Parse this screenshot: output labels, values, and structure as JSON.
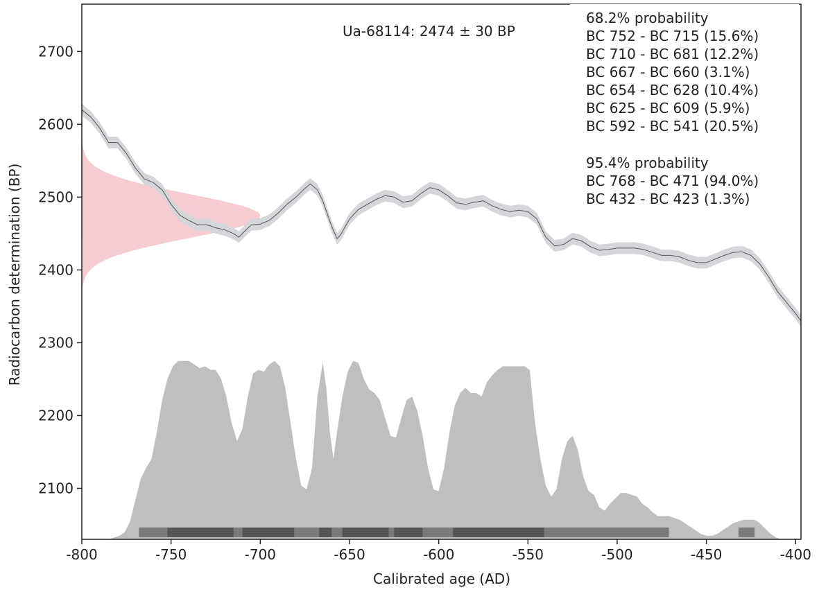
{
  "chart_data": {
    "type": "area",
    "title": "",
    "xlabel": "Calibrated age (AD)",
    "ylabel": "Radiocarbon determination (BP)",
    "xlim": [
      -800,
      -397
    ],
    "ylim": [
      2030,
      2765
    ],
    "x_ticks": [
      -800,
      -750,
      -700,
      -650,
      -600,
      -550,
      -500,
      -450,
      -400
    ],
    "x_tick_labels": [
      "-800",
      "-750",
      "-700",
      "-650",
      "-600",
      "-550",
      "-500",
      "-450",
      "-400"
    ],
    "y_ticks": [
      2100,
      2200,
      2300,
      2400,
      2500,
      2600,
      2700
    ],
    "y_tick_labels": [
      "2100",
      "2200",
      "2300",
      "2400",
      "2500",
      "2600",
      "2700"
    ],
    "grid": false,
    "sample_label": "Ua-68114: 2474 ± 30 BP",
    "ranges_68": {
      "heading": "68.2% probability",
      "lines": [
        "BC 752 - BC 715 (15.6%)",
        "BC 710 - BC 681 (12.2%)",
        "BC 667 - BC 660 (3.1%)",
        "BC 654 - BC 628 (10.4%)",
        "BC 625 - BC 609 (5.9%)",
        "BC 592 - BC 541 (20.5%)"
      ]
    },
    "ranges_95": {
      "heading": "95.4% probability",
      "lines": [
        "BC 768 - BC 471 (94.0%)",
        "BC 432 - BC 423 (1.3%)"
      ]
    },
    "calibration_curve": {
      "x": [
        -800,
        -795,
        -790,
        -785,
        -780,
        -775,
        -770,
        -765,
        -760,
        -755,
        -750,
        -745,
        -740,
        -735,
        -730,
        -725,
        -720,
        -715,
        -712,
        -708,
        -705,
        -700,
        -695,
        -690,
        -685,
        -680,
        -675,
        -672,
        -668,
        -665,
        -660,
        -657,
        -655,
        -650,
        -645,
        -640,
        -635,
        -630,
        -625,
        -620,
        -615,
        -610,
        -605,
        -600,
        -595,
        -590,
        -585,
        -580,
        -575,
        -570,
        -565,
        -560,
        -555,
        -550,
        -545,
        -540,
        -535,
        -530,
        -525,
        -520,
        -515,
        -510,
        -505,
        -500,
        -495,
        -490,
        -485,
        -480,
        -475,
        -470,
        -465,
        -460,
        -455,
        -450,
        -445,
        -440,
        -435,
        -430,
        -425,
        -420,
        -415,
        -410,
        -405,
        -400,
        -397
      ],
      "bp": [
        2620,
        2610,
        2595,
        2575,
        2575,
        2560,
        2540,
        2525,
        2520,
        2510,
        2490,
        2475,
        2468,
        2462,
        2462,
        2458,
        2455,
        2450,
        2445,
        2455,
        2462,
        2463,
        2468,
        2478,
        2490,
        2500,
        2512,
        2518,
        2510,
        2495,
        2460,
        2443,
        2448,
        2470,
        2483,
        2490,
        2497,
        2502,
        2500,
        2493,
        2495,
        2505,
        2513,
        2510,
        2502,
        2492,
        2490,
        2493,
        2495,
        2488,
        2483,
        2480,
        2482,
        2480,
        2470,
        2445,
        2433,
        2435,
        2443,
        2440,
        2432,
        2427,
        2428,
        2430,
        2430,
        2430,
        2428,
        2424,
        2420,
        2420,
        2418,
        2413,
        2410,
        2410,
        2415,
        2420,
        2424,
        2425,
        2420,
        2408,
        2390,
        2370,
        2355,
        2340,
        2330
      ],
      "sigma": 8
    },
    "measurement": {
      "mean_bp": 2474,
      "error_bp": 30,
      "x_start": -800,
      "peak_extent_years": 100,
      "band_sigmas": 3.4
    },
    "posterior": {
      "x": [
        -788,
        -785,
        -782,
        -779,
        -776,
        -773,
        -770,
        -767,
        -764,
        -761,
        -758,
        -755,
        -752,
        -749,
        -746,
        -743,
        -740,
        -737,
        -734,
        -731,
        -728,
        -725,
        -722,
        -719,
        -716,
        -713,
        -710,
        -707,
        -704,
        -701,
        -698,
        -695,
        -692,
        -689,
        -686,
        -683,
        -680,
        -677,
        -674,
        -671,
        -668,
        -665,
        -663,
        -661,
        -659,
        -657,
        -654,
        -651,
        -648,
        -645,
        -642,
        -639,
        -636,
        -633,
        -630,
        -627,
        -624,
        -621,
        -618,
        -615,
        -612,
        -609,
        -606,
        -603,
        -600,
        -597,
        -594,
        -591,
        -588,
        -585,
        -582,
        -579,
        -576,
        -573,
        -570,
        -567,
        -564,
        -561,
        -558,
        -555,
        -552,
        -549,
        -546,
        -543,
        -540,
        -537,
        -534,
        -531,
        -528,
        -525,
        -522,
        -519,
        -516,
        -513,
        -510,
        -507,
        -504,
        -501,
        -498,
        -495,
        -492,
        -489,
        -486,
        -483,
        -480,
        -477,
        -474,
        -471,
        -468,
        -465,
        -462,
        -459,
        -456,
        -453,
        -450,
        -447,
        -444,
        -441,
        -438,
        -435,
        -432,
        -429,
        -426,
        -423,
        -420,
        -417,
        -414,
        -411,
        -408,
        -405
      ],
      "density": [
        0,
        0,
        0.01,
        0.02,
        0.04,
        0.1,
        0.22,
        0.34,
        0.4,
        0.45,
        0.6,
        0.78,
        0.9,
        0.97,
        1,
        1,
        1,
        0.98,
        0.96,
        0.97,
        0.95,
        0.95,
        0.9,
        0.8,
        0.65,
        0.55,
        0.62,
        0.8,
        0.93,
        0.95,
        0.94,
        0.98,
        1,
        0.97,
        0.85,
        0.65,
        0.45,
        0.3,
        0.28,
        0.4,
        0.8,
        0.99,
        0.85,
        0.6,
        0.45,
        0.6,
        0.8,
        0.94,
        1,
        0.99,
        0.9,
        0.84,
        0.82,
        0.78,
        0.68,
        0.58,
        0.57,
        0.68,
        0.78,
        0.8,
        0.72,
        0.58,
        0.4,
        0.28,
        0.27,
        0.4,
        0.6,
        0.75,
        0.82,
        0.85,
        0.82,
        0.82,
        0.8,
        0.88,
        0.92,
        0.95,
        0.97,
        0.97,
        0.97,
        0.97,
        0.97,
        0.95,
        0.65,
        0.45,
        0.3,
        0.24,
        0.28,
        0.45,
        0.55,
        0.58,
        0.5,
        0.35,
        0.27,
        0.25,
        0.18,
        0.16,
        0.2,
        0.23,
        0.26,
        0.26,
        0.25,
        0.24,
        0.2,
        0.18,
        0.15,
        0.13,
        0.13,
        0.13,
        0.12,
        0.11,
        0.09,
        0.07,
        0.05,
        0.03,
        0.02,
        0.02,
        0.03,
        0.05,
        0.07,
        0.09,
        0.1,
        0.11,
        0.11,
        0.11,
        0.09,
        0.06,
        0.03,
        0.01,
        0,
        0
      ],
      "peak_height_bp": 245
    },
    "range_bars": {
      "band_95": [
        [
          -768,
          -471
        ],
        [
          -432,
          -423
        ]
      ],
      "band_68": [
        [
          -752,
          -715
        ],
        [
          -710,
          -681
        ],
        [
          -667,
          -660
        ],
        [
          -654,
          -628
        ],
        [
          -625,
          -609
        ],
        [
          -592,
          -541
        ]
      ]
    },
    "colors": {
      "curve_line": "#555555",
      "curve_band": "#d5d6d9",
      "measurement_fill": "#f5c3cb",
      "posterior_fill": "#bfbfc1",
      "bar_95": "#7a7a7a",
      "bar_68": "#555555",
      "axis": "#222222"
    }
  }
}
